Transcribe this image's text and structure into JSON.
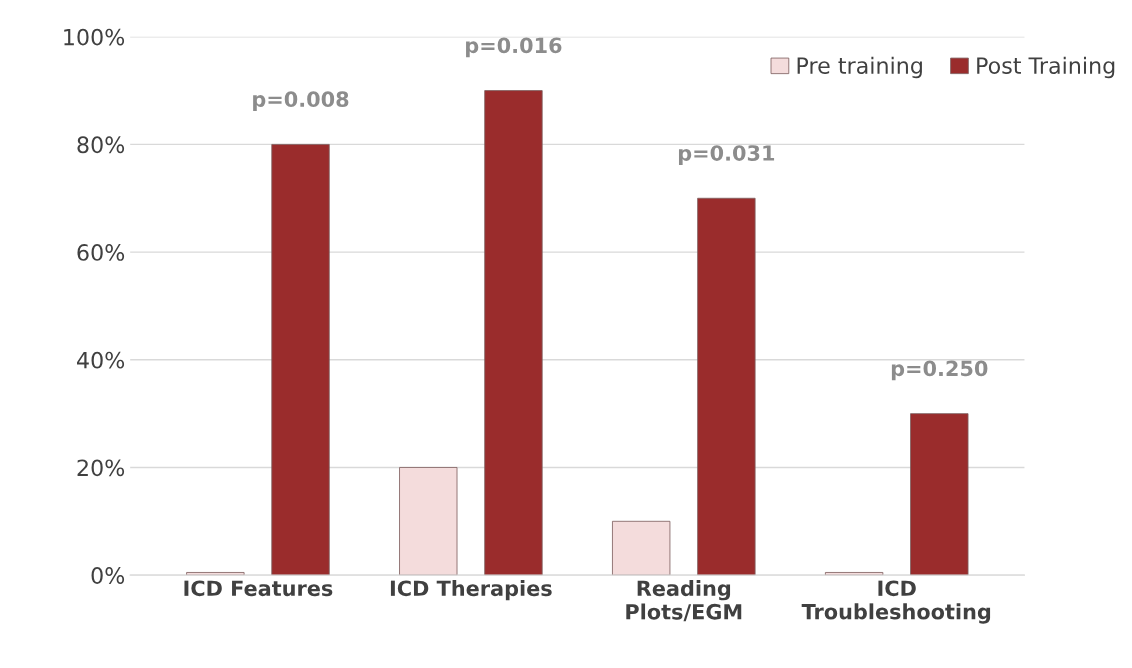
{
  "chart_data": {
    "type": "bar",
    "categories": [
      "ICD Features",
      "ICD Therapies",
      "Reading\nPlots/EGM",
      "ICD\nTroubleshooting"
    ],
    "series": [
      {
        "name": "Pre training",
        "color": "#f4dcdc",
        "values": [
          0.5,
          20,
          10,
          0.5
        ]
      },
      {
        "name": "Post Training",
        "color": "#9a2c2c",
        "values": [
          80,
          90,
          70,
          30
        ]
      }
    ],
    "ylim": [
      0,
      100
    ],
    "yticks": [
      {
        "value": 0,
        "label": "0%"
      },
      {
        "value": 20,
        "label": "20%"
      },
      {
        "value": 40,
        "label": "40%"
      },
      {
        "value": 60,
        "label": "60%"
      },
      {
        "value": 80,
        "label": "80%"
      },
      {
        "value": 100,
        "label": "100%"
      }
    ],
    "grid": "y",
    "legend": "top right",
    "annotations": [
      "p=0.008",
      "p=0.016",
      "p=0.031",
      "p=0.250"
    ]
  }
}
